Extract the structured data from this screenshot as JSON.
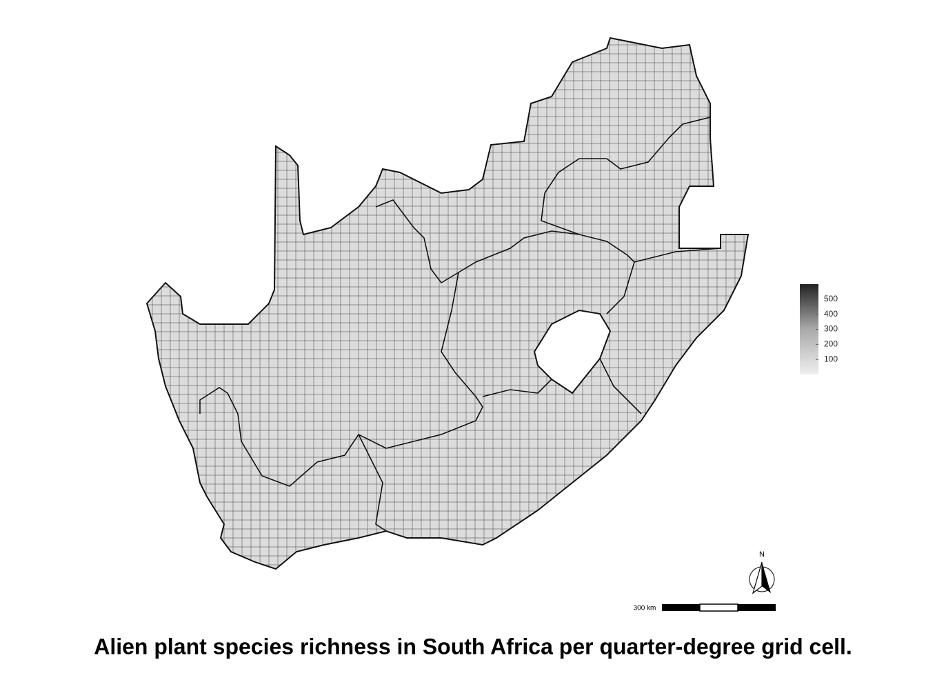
{
  "caption": "Alien plant species richness in South Africa per quarter-degree grid cell.",
  "legend": {
    "range": [
      0,
      600
    ],
    "ticks": [
      100,
      200,
      300,
      400,
      500
    ]
  },
  "scale_bar": {
    "label": "300 km"
  },
  "north_arrow": {
    "label": "N"
  }
}
